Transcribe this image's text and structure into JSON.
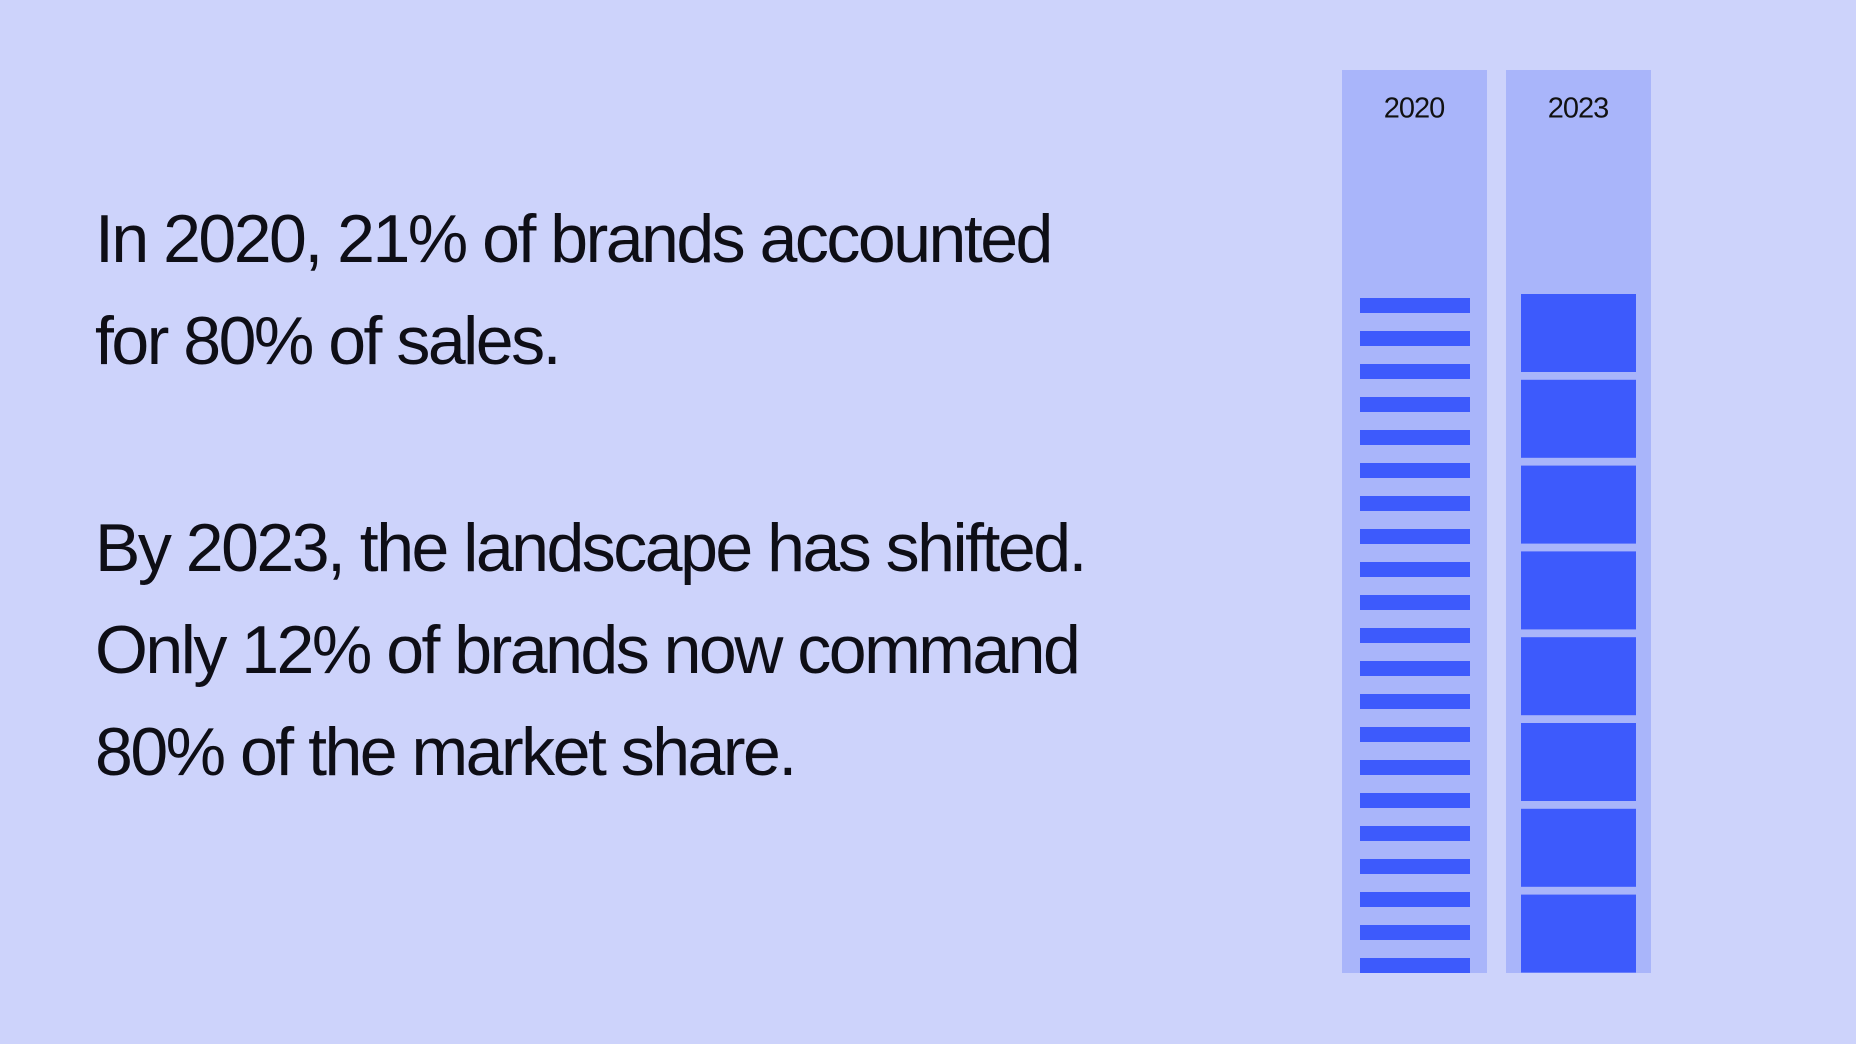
{
  "paragraphs": [
    [
      "In 2020, 21% of brands accounted",
      "for 80% of sales."
    ],
    [
      "By 2023, the landscape has shifted.",
      "Only 12% of brands now command",
      "80% of the market share."
    ]
  ],
  "columns": [
    {
      "label": "2020"
    },
    {
      "label": "2023"
    }
  ]
}
